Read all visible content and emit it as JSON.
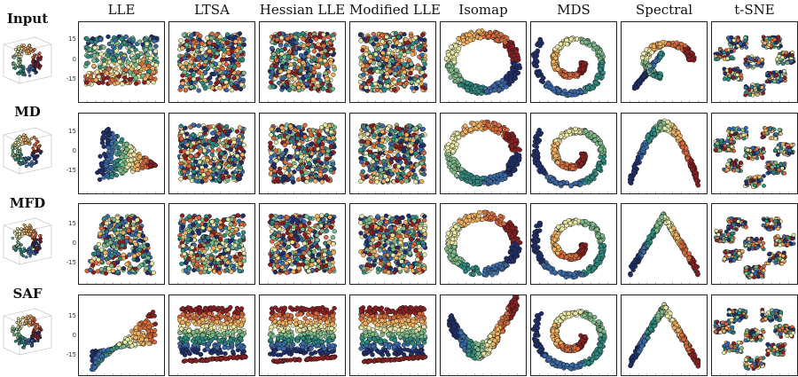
{
  "figure": {
    "column_titles": [
      "LLE",
      "LTSA",
      "Hessian LLE",
      "Modified LLE",
      "Isomap",
      "MDS",
      "Spectral",
      "t-SNE"
    ],
    "row_titles": [
      "Input",
      "MD",
      "MFD",
      "SAF"
    ],
    "y_tick_labels": [
      "15",
      "0",
      "-15"
    ],
    "palette": [
      "#1f2f6b",
      "#3a6aa8",
      "#2f8a80",
      "#7fba8a",
      "#e9e7a6",
      "#f0b060",
      "#d66a3c",
      "#8a1f22"
    ]
  }
}
